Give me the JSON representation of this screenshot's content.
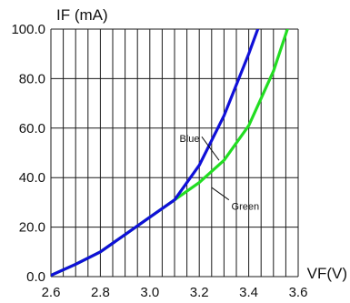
{
  "chart_data": {
    "type": "line",
    "xlabel": "VF(V)",
    "ylabel": "IF (mA)",
    "xlim": [
      2.6,
      3.6
    ],
    "ylim": [
      0,
      100
    ],
    "x_ticks": [
      "2.6",
      "2.8",
      "3.0",
      "3.2",
      "3.4",
      "3.6"
    ],
    "y_ticks": [
      "0.0",
      "20.0",
      "40.0",
      "60.0",
      "80.0",
      "100.0"
    ],
    "grid": true,
    "series": [
      {
        "name": "Blue",
        "color": "#1010d8",
        "x": [
          2.6,
          2.7,
          2.8,
          2.9,
          3.0,
          3.1,
          3.2,
          3.3,
          3.4,
          3.47
        ],
        "y": [
          0.5,
          5,
          10,
          17,
          24,
          31,
          45,
          65,
          90,
          109
        ]
      },
      {
        "name": "Green",
        "color": "#22dd22",
        "x": [
          2.6,
          2.7,
          2.8,
          2.9,
          3.0,
          3.1,
          3.2,
          3.3,
          3.4,
          3.5,
          3.6
        ],
        "y": [
          0.5,
          5,
          10,
          17,
          24,
          31,
          38,
          47,
          61,
          83,
          113
        ]
      }
    ]
  }
}
